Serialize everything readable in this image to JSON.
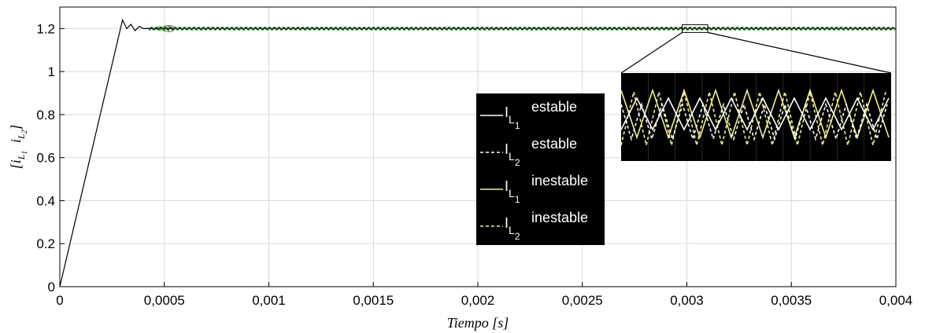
{
  "chart_data": {
    "type": "line",
    "xlabel": "Tiempo [s]",
    "ylabel": "[i_L1  i_L2]",
    "xlim": [
      0,
      0.004
    ],
    "ylim": [
      0,
      1.3
    ],
    "grid": true,
    "x_ticks": [
      0,
      0.0005,
      0.001,
      0.0015,
      0.002,
      0.0025,
      0.003,
      0.0035,
      0.004
    ],
    "x_tick_labels": [
      "0",
      "0,0005",
      "0,001",
      "0,0015",
      "0,002",
      "0,0025",
      "0,003",
      "0,0035",
      "0,004"
    ],
    "y_ticks": [
      0,
      0.2,
      0.4,
      0.6,
      0.8,
      1,
      1.2
    ],
    "y_tick_labels": [
      "0",
      "0.2",
      "0.4",
      "0.6",
      "0.8",
      "1",
      "1.2"
    ],
    "series": [
      {
        "name": "I_L1 estable",
        "color": "#000000",
        "dash": "solid",
        "x": [
          0,
          0.0003,
          0.00032,
          0.00034,
          0.00036,
          0.00038,
          0.0004,
          0.0005,
          0.001,
          0.002,
          0.003,
          0.004
        ],
        "y": [
          0,
          1.24,
          1.2,
          1.22,
          1.19,
          1.21,
          1.2,
          1.2,
          1.2,
          1.2,
          1.2,
          1.2
        ]
      },
      {
        "name": "I_L2 estable",
        "color": "#000000",
        "dash": "dashed",
        "x": [
          0.0004,
          0.001,
          0.002,
          0.003,
          0.004
        ],
        "y": [
          1.2,
          1.2,
          1.2,
          1.2,
          1.2
        ]
      },
      {
        "name": "I_L1 inestable",
        "color": "#2ca02c",
        "dash": "solid",
        "x": [
          0.00045,
          0.00048,
          0.0005,
          0.00052,
          0.00055,
          0.001,
          0.004
        ],
        "y": [
          1.2,
          1.21,
          1.19,
          1.21,
          1.2,
          1.2,
          1.2
        ]
      },
      {
        "name": "I_L2 inestable",
        "color": "#2ca02c",
        "dash": "dashed",
        "x": [
          0.00045,
          0.00048,
          0.0005,
          0.00052,
          0.00055,
          0.001,
          0.004
        ],
        "y": [
          1.2,
          1.19,
          1.21,
          1.19,
          1.2,
          1.2,
          1.2
        ]
      }
    ],
    "legend": {
      "placement": "center-right",
      "entries": [
        {
          "main": "I",
          "sub": "L",
          "subsub": "1",
          "state": "estable",
          "color": "#ffffff",
          "dash": "solid"
        },
        {
          "main": "I",
          "sub": "L",
          "subsub": "2",
          "state": "estable",
          "color": "#ffffff",
          "dash": "dashed"
        },
        {
          "main": "I",
          "sub": "L",
          "subsub": "1",
          "state": "inestable",
          "color": "#f0f0a0",
          "dash": "solid"
        },
        {
          "main": "I",
          "sub": "L",
          "subsub": "2",
          "state": "inestable",
          "color": "#f0f0a0",
          "dash": "dashed"
        }
      ]
    },
    "inset": {
      "description_window_x": [
        0.003,
        0.0031
      ],
      "background": "#000000",
      "series_colors": {
        "estable": "#ffffff",
        "inestable": "#f0f090"
      }
    }
  }
}
